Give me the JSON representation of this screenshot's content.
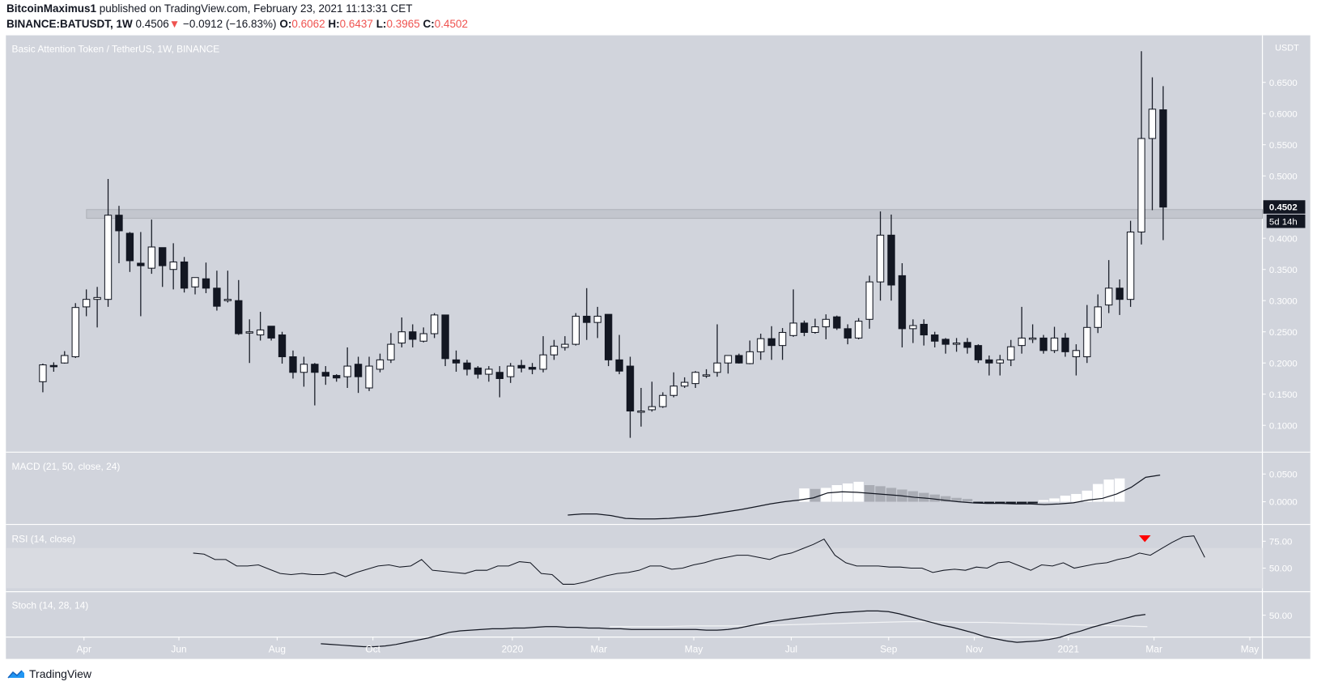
{
  "header": {
    "author": "BitcoinMaximus1",
    "published_text": "published on TradingView.com, February 23, 2021 11:13:31 CET",
    "symbol": "BINANCE:BATUSDT, 1W",
    "last": "0.4506",
    "change": "−0.0912 (−16.83%)",
    "o_label": "O:",
    "o": "0.6062",
    "h_label": "H:",
    "h": "0.6437",
    "l_label": "L:",
    "l": "0.3965",
    "c_label": "C:",
    "c": "0.4502"
  },
  "footer": {
    "brand": "TradingView"
  },
  "colors": {
    "bg": "#d1d4dc",
    "up_body": "#ffffff",
    "down_body": "#131722",
    "wick": "#131722",
    "accent_red": "#ef5350",
    "brand_blue": "#2196f3"
  },
  "chart_data": [
    {
      "type": "candlestick",
      "title": "Basic Attention Token / TetherUS, 1W, BINANCE",
      "price_unit": "USDT",
      "last_price_label": "0.4502",
      "countdown_label": "5d 14h",
      "y_ticks": [
        "0.6500",
        "0.6000",
        "0.5500",
        "0.5000",
        "0.4500",
        "0.4000",
        "0.3500",
        "0.3000",
        "0.2500",
        "0.2000",
        "0.1500",
        "0.1000"
      ],
      "ylim": [
        0.07,
        0.7
      ],
      "x_ticks": [
        "Apr",
        "Jun",
        "Aug",
        "Oct",
        "2020",
        "Mar",
        "May",
        "Jul",
        "Sep",
        "Nov",
        "2021",
        "Mar",
        "May"
      ],
      "resistance_zone": [
        0.432,
        0.446
      ],
      "ohlc": [
        [
          0.17,
          0.197,
          0.153,
          0.199
        ],
        [
          0.196,
          0.194,
          0.186,
          0.201
        ],
        [
          0.2,
          0.212,
          0.199,
          0.219
        ],
        [
          0.21,
          0.289,
          0.208,
          0.296
        ],
        [
          0.29,
          0.302,
          0.275,
          0.318
        ],
        [
          0.302,
          0.305,
          0.257,
          0.322
        ],
        [
          0.302,
          0.437,
          0.29,
          0.495
        ],
        [
          0.437,
          0.412,
          0.36,
          0.452
        ],
        [
          0.408,
          0.364,
          0.346,
          0.41
        ],
        [
          0.36,
          0.356,
          0.275,
          0.41
        ],
        [
          0.352,
          0.386,
          0.343,
          0.43
        ],
        [
          0.385,
          0.356,
          0.322,
          0.385
        ],
        [
          0.35,
          0.362,
          0.318,
          0.392
        ],
        [
          0.362,
          0.32,
          0.313,
          0.37
        ],
        [
          0.322,
          0.337,
          0.31,
          0.337
        ],
        [
          0.335,
          0.32,
          0.312,
          0.361
        ],
        [
          0.32,
          0.291,
          0.284,
          0.348
        ],
        [
          0.3,
          0.302,
          0.297,
          0.348
        ],
        [
          0.3,
          0.247,
          0.245,
          0.333
        ],
        [
          0.249,
          0.25,
          0.2,
          0.27
        ],
        [
          0.245,
          0.253,
          0.236,
          0.282
        ],
        [
          0.259,
          0.24,
          0.236,
          0.259
        ],
        [
          0.245,
          0.21,
          0.199,
          0.25
        ],
        [
          0.21,
          0.185,
          0.175,
          0.22
        ],
        [
          0.185,
          0.198,
          0.162,
          0.21
        ],
        [
          0.198,
          0.185,
          0.132,
          0.2
        ],
        [
          0.185,
          0.179,
          0.165,
          0.195
        ],
        [
          0.18,
          0.176,
          0.17,
          0.182
        ],
        [
          0.178,
          0.195,
          0.16,
          0.225
        ],
        [
          0.198,
          0.178,
          0.152,
          0.21
        ],
        [
          0.16,
          0.195,
          0.155,
          0.21
        ],
        [
          0.19,
          0.205,
          0.185,
          0.215
        ],
        [
          0.205,
          0.23,
          0.2,
          0.248
        ],
        [
          0.232,
          0.25,
          0.225,
          0.273
        ],
        [
          0.25,
          0.238,
          0.225,
          0.262
        ],
        [
          0.235,
          0.247,
          0.233,
          0.257
        ],
        [
          0.247,
          0.277,
          0.24,
          0.28
        ],
        [
          0.277,
          0.207,
          0.195,
          0.277
        ],
        [
          0.205,
          0.2,
          0.186,
          0.22
        ],
        [
          0.2,
          0.19,
          0.18,
          0.205
        ],
        [
          0.192,
          0.182,
          0.175,
          0.195
        ],
        [
          0.182,
          0.19,
          0.17,
          0.195
        ],
        [
          0.185,
          0.175,
          0.145,
          0.195
        ],
        [
          0.178,
          0.195,
          0.168,
          0.2
        ],
        [
          0.196,
          0.192,
          0.185,
          0.205
        ],
        [
          0.193,
          0.19,
          0.182,
          0.2
        ],
        [
          0.19,
          0.213,
          0.185,
          0.243
        ],
        [
          0.213,
          0.227,
          0.205,
          0.237
        ],
        [
          0.225,
          0.23,
          0.22,
          0.243
        ],
        [
          0.23,
          0.275,
          0.228,
          0.28
        ],
        [
          0.275,
          0.265,
          0.237,
          0.32
        ],
        [
          0.265,
          0.275,
          0.24,
          0.29
        ],
        [
          0.278,
          0.205,
          0.195,
          0.277
        ],
        [
          0.205,
          0.187,
          0.182,
          0.245
        ],
        [
          0.195,
          0.123,
          0.08,
          0.21
        ],
        [
          0.123,
          0.123,
          0.098,
          0.16
        ],
        [
          0.125,
          0.13,
          0.122,
          0.17
        ],
        [
          0.13,
          0.148,
          0.128,
          0.153
        ],
        [
          0.148,
          0.163,
          0.145,
          0.185
        ],
        [
          0.163,
          0.169,
          0.16,
          0.177
        ],
        [
          0.167,
          0.185,
          0.16,
          0.187
        ],
        [
          0.181,
          0.181,
          0.176,
          0.19
        ],
        [
          0.185,
          0.2,
          0.178,
          0.262
        ],
        [
          0.2,
          0.212,
          0.183,
          0.212
        ],
        [
          0.212,
          0.2,
          0.199,
          0.215
        ],
        [
          0.199,
          0.218,
          0.198,
          0.236
        ],
        [
          0.218,
          0.239,
          0.205,
          0.247
        ],
        [
          0.239,
          0.228,
          0.205,
          0.259
        ],
        [
          0.228,
          0.249,
          0.205,
          0.256
        ],
        [
          0.244,
          0.264,
          0.242,
          0.318
        ],
        [
          0.264,
          0.249,
          0.243,
          0.268
        ],
        [
          0.249,
          0.258,
          0.247,
          0.271
        ],
        [
          0.258,
          0.27,
          0.238,
          0.278
        ],
        [
          0.274,
          0.256,
          0.253,
          0.276
        ],
        [
          0.255,
          0.24,
          0.23,
          0.262
        ],
        [
          0.24,
          0.267,
          0.238,
          0.272
        ],
        [
          0.27,
          0.33,
          0.255,
          0.34
        ],
        [
          0.33,
          0.405,
          0.3,
          0.443
        ],
        [
          0.405,
          0.325,
          0.3,
          0.438
        ],
        [
          0.34,
          0.255,
          0.225,
          0.36
        ],
        [
          0.255,
          0.26,
          0.232,
          0.27
        ],
        [
          0.262,
          0.245,
          0.228,
          0.27
        ],
        [
          0.245,
          0.235,
          0.225,
          0.25
        ],
        [
          0.238,
          0.23,
          0.215,
          0.24
        ],
        [
          0.23,
          0.232,
          0.218,
          0.24
        ],
        [
          0.233,
          0.225,
          0.215,
          0.24
        ],
        [
          0.228,
          0.205,
          0.2,
          0.23
        ],
        [
          0.205,
          0.2,
          0.18,
          0.212
        ],
        [
          0.2,
          0.205,
          0.18,
          0.213
        ],
        [
          0.205,
          0.226,
          0.195,
          0.237
        ],
        [
          0.228,
          0.24,
          0.215,
          0.29
        ],
        [
          0.238,
          0.24,
          0.232,
          0.262
        ],
        [
          0.24,
          0.22,
          0.215,
          0.245
        ],
        [
          0.22,
          0.24,
          0.216,
          0.258
        ],
        [
          0.24,
          0.218,
          0.21,
          0.248
        ],
        [
          0.21,
          0.22,
          0.18,
          0.23
        ],
        [
          0.21,
          0.257,
          0.2,
          0.293
        ],
        [
          0.257,
          0.29,
          0.248,
          0.31
        ],
        [
          0.293,
          0.32,
          0.28,
          0.365
        ],
        [
          0.32,
          0.302,
          0.277,
          0.334
        ],
        [
          0.302,
          0.41,
          0.29,
          0.428
        ],
        [
          0.41,
          0.56,
          0.39,
          0.7
        ],
        [
          0.56,
          0.607,
          0.445,
          0.658
        ],
        [
          0.606,
          0.45,
          0.397,
          0.644
        ]
      ]
    },
    {
      "type": "line+histogram",
      "title": "MACD (21, 50, close, 24)",
      "y_ticks": [
        "0.0500",
        "0.0000"
      ],
      "macd_line": [
        -0.024,
        -0.022,
        -0.022,
        -0.025,
        -0.03,
        -0.031,
        -0.031,
        -0.03,
        -0.028,
        -0.026,
        -0.022,
        -0.018,
        -0.014,
        -0.009,
        -0.004,
        0.0,
        0.003,
        0.007,
        0.016,
        0.018,
        0.017,
        0.015,
        0.013,
        0.011,
        0.008,
        0.006,
        0.003,
        0.0,
        -0.002,
        -0.003,
        -0.003,
        -0.004,
        -0.004,
        -0.005,
        -0.004,
        -0.002,
        0.003,
        0.006,
        0.014,
        0.026,
        0.044,
        0.048
      ],
      "histogram": [
        0.024,
        0.023,
        0.025,
        0.03,
        0.033,
        0.036,
        0.03,
        0.028,
        0.025,
        0.022,
        0.019,
        0.016,
        0.013,
        0.01,
        0.007,
        0.005,
        -0.003,
        -0.003,
        -0.003,
        -0.003,
        -0.003,
        -0.003,
        0.003,
        0.006,
        0.011,
        0.014,
        0.02,
        0.032,
        0.04,
        0.042
      ],
      "histogram_start_index": 70
    },
    {
      "type": "line",
      "title": "RSI (14, close)",
      "y_ticks": [
        "75.00",
        "50.00"
      ],
      "band": [
        30,
        70
      ],
      "values": [
        64,
        63,
        58,
        58,
        52,
        52,
        53,
        49,
        45,
        44,
        45,
        44,
        44,
        46,
        42,
        46,
        49,
        52,
        53,
        51,
        52,
        58,
        48,
        47,
        46,
        45,
        48,
        48,
        52,
        52,
        56,
        55,
        45,
        44,
        35,
        35,
        37,
        40,
        43,
        45,
        46,
        48,
        52,
        52,
        49,
        50,
        53,
        55,
        58,
        60,
        62,
        62,
        60,
        58,
        62,
        64,
        68,
        72,
        77,
        62,
        55,
        52,
        52,
        52,
        51,
        51,
        50,
        50,
        46,
        48,
        49,
        48,
        51,
        50,
        55,
        56,
        52,
        48,
        53,
        52,
        55,
        50,
        52,
        54,
        55,
        58,
        60,
        64,
        62,
        68,
        74,
        79,
        80,
        60
      ],
      "start_index": 14,
      "signal_marker": "sell-triangle-red"
    },
    {
      "type": "line",
      "title": "Stoch (14, 28, 14)",
      "y_ticks": [
        "50.00"
      ],
      "k_line": [
        10,
        9,
        8,
        7,
        6,
        6,
        7,
        9,
        12,
        15,
        18,
        22,
        26,
        28,
        29,
        30,
        31,
        31,
        32,
        32,
        33,
        34,
        34,
        33,
        33,
        32,
        32,
        31,
        31,
        30,
        30,
        30,
        30,
        30,
        30,
        30,
        29,
        29,
        30,
        32,
        35,
        38,
        41,
        43,
        45,
        47,
        49,
        51,
        53,
        54,
        55,
        56,
        56,
        55,
        52,
        48,
        44,
        40,
        36,
        33,
        29,
        25,
        20,
        17,
        14,
        12,
        13,
        14,
        16,
        19,
        24,
        28,
        33,
        37,
        41,
        45,
        49,
        51
      ],
      "d_line": [
        34,
        34,
        34,
        35,
        35,
        35,
        36,
        37,
        38,
        39,
        40,
        41,
        41,
        40,
        40,
        39,
        38,
        37,
        36,
        35,
        34
      ],
      "k_start_index": 28,
      "d_start_index": 56
    }
  ]
}
